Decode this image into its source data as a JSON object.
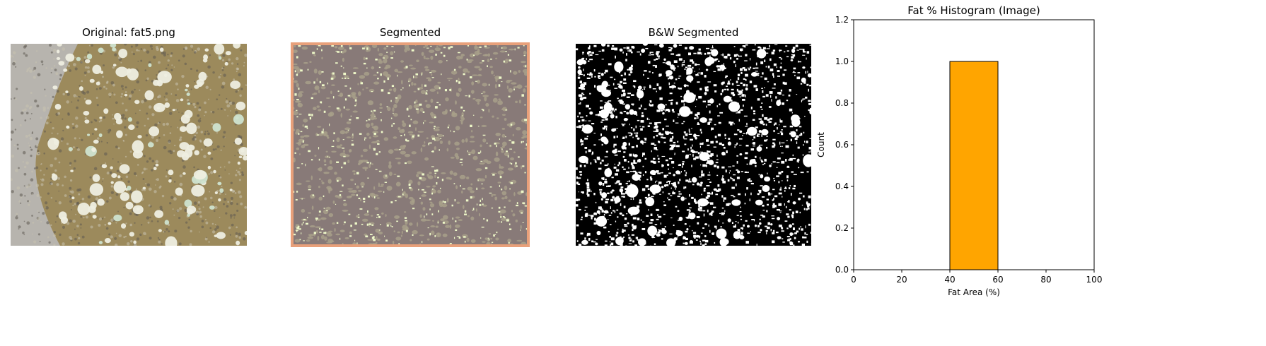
{
  "panels": {
    "original_title": "Original: fat5.png",
    "segmented_title": "Segmented",
    "bw_title": "B&W Segmented"
  },
  "colors": {
    "tissue_brown": "#9c8a5c",
    "stroma_gray": "#b7b4ae",
    "fat_white": "#eeeee0",
    "fat_mint": "#cfe3cf",
    "seg_bg": "#887a78",
    "seg_fat": "#a8a08a",
    "seg_highlight": "#eef8c8",
    "seg_border": "#e8a07a",
    "bar_fill": "#ffa500",
    "bar_edge": "#000000"
  },
  "chart_data": {
    "type": "bar",
    "title": "Fat % Histogram (Image)",
    "xlabel": "Fat Area (%)",
    "ylabel": "Count",
    "xlim": [
      0,
      100
    ],
    "ylim": [
      0,
      1.2
    ],
    "xticks": [
      0,
      20,
      40,
      60,
      80,
      100
    ],
    "yticks": [
      0.0,
      0.2,
      0.4,
      0.6,
      0.8,
      1.0,
      1.2
    ],
    "bins": [
      {
        "x0": 40,
        "x1": 60,
        "count": 1.0
      }
    ],
    "grid": false
  }
}
